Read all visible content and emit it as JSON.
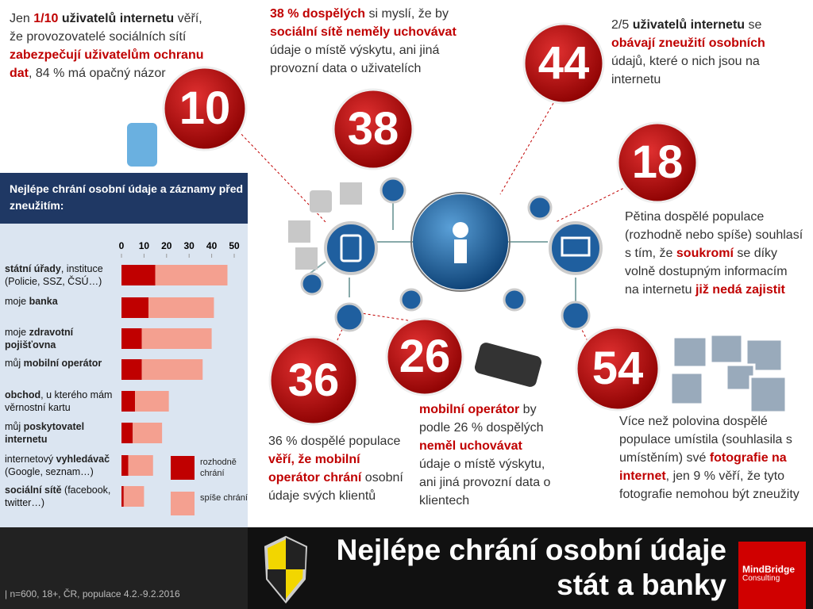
{
  "stats": [
    {
      "number": "10",
      "text": [
        {
          "text": "Jen ",
          "style": "plain"
        },
        {
          "text": "1/10",
          "style": "red"
        },
        {
          "text": " uživatelů internetu",
          "style": "bold"
        },
        {
          "text": " věří, že provozovatelé sociálních sítí ",
          "style": "plain"
        },
        {
          "text": "zabezpečují uživatelům ochranu dat",
          "style": "red"
        },
        {
          "text": ", 84 % má opačný názor",
          "style": "plain"
        }
      ]
    },
    {
      "number": "38",
      "text": [
        {
          "text": "38 % dospělých",
          "style": "red"
        },
        {
          "text": " si myslí, že by ",
          "style": "plain"
        },
        {
          "text": "sociální sítě neměly uchovávat",
          "style": "red"
        },
        {
          "text": " údaje o místě výskytu, ani jiná provozní data o uživatelích",
          "style": "plain"
        }
      ]
    },
    {
      "number": "44",
      "text": [
        {
          "text": "2/5 ",
          "style": "plain"
        },
        {
          "text": "uživatelů internetu",
          "style": "bold"
        },
        {
          "text": " se ",
          "style": "plain"
        },
        {
          "text": "obávají zneužití osobních",
          "style": "red"
        },
        {
          "text": " údajů, které o nich jsou na internetu",
          "style": "plain"
        }
      ]
    },
    {
      "number": "18",
      "text": [
        {
          "text": "Pětina dospělé populace (rozhodně nebo spíše) souhlasí s tím, že ",
          "style": "plain"
        },
        {
          "text": "soukromí",
          "style": "red"
        },
        {
          "text": " se díky volně dostupným informacím na internetu ",
          "style": "plain"
        },
        {
          "text": "již nedá zajistit",
          "style": "red"
        }
      ]
    },
    {
      "number": "36",
      "text": [
        {
          "text": "36 % dospělé populace ",
          "style": "plain"
        },
        {
          "text": "věří, že mobilní operátor chrání",
          "style": "red"
        },
        {
          "text": " osobní údaje svých klientů",
          "style": "plain"
        }
      ]
    },
    {
      "number": "26",
      "text": [
        {
          "text": "mobilní operátor",
          "style": "red"
        },
        {
          "text": " by podle 26 % dospělých ",
          "style": "plain"
        },
        {
          "text": "neměl uchovávat",
          "style": "red"
        },
        {
          "text": " údaje o místě výskytu, ani jiná provozní data o klientech",
          "style": "plain"
        }
      ]
    },
    {
      "number": "54",
      "text": [
        {
          "text": "Více než polovina dospělé populace umístila (souhlasila s umístěním) své ",
          "style": "plain"
        },
        {
          "text": "fotografie na internet",
          "style": "red"
        },
        {
          "text": ", jen 9 % věří, že tyto fotografie nemohou být zneužity",
          "style": "plain"
        }
      ]
    }
  ],
  "chart_data": {
    "type": "stacked-barh",
    "title": "Nejlépe chrání osobní údaje a záznamy před zneužitím:",
    "categories": [
      [
        {
          "text": "státní úřady",
          "style": "bold"
        },
        {
          "text": ", instituce (Policie, SSZ, ČSÚ…)",
          "style": "plain"
        }
      ],
      [
        {
          "text": "moje ",
          "style": "plain"
        },
        {
          "text": "banka",
          "style": "bold"
        }
      ],
      [
        {
          "text": "moje ",
          "style": "plain"
        },
        {
          "text": "zdravotní pojišťovna",
          "style": "bold"
        }
      ],
      [
        {
          "text": "můj ",
          "style": "plain"
        },
        {
          "text": "mobilní operátor",
          "style": "bold"
        }
      ],
      [
        {
          "text": "obchod",
          "style": "bold"
        },
        {
          "text": ", u kterého mám věrnostní kartu",
          "style": "plain"
        }
      ],
      [
        {
          "text": "můj ",
          "style": "plain"
        },
        {
          "text": "poskytovatel internetu",
          "style": "bold"
        }
      ],
      [
        {
          "text": "internetový ",
          "style": "plain"
        },
        {
          "text": "vyhledávač",
          "style": "bold"
        },
        {
          "text": " (Google, seznam…)",
          "style": "plain"
        }
      ],
      [
        {
          "text": "sociální sítě",
          "style": "bold"
        },
        {
          "text": " (facebook, twitter…)",
          "style": "plain"
        }
      ]
    ],
    "series": [
      {
        "name": "rozhodně chrání",
        "color": "#c00000",
        "values": [
          15,
          12,
          9,
          9,
          6,
          5,
          3,
          1
        ]
      },
      {
        "name": "spíše chrání",
        "color": "#f4a090",
        "values": [
          32,
          29,
          31,
          27,
          15,
          13,
          11,
          9
        ]
      }
    ],
    "xlim": [
      0,
      50
    ],
    "xticks": [
      0,
      10,
      20,
      30,
      40,
      50
    ]
  },
  "footer": {
    "note": "| n=600, 18+, ČR, populace 4.2.-9.2.2016",
    "headline_1": "Nejlépe chrání osobní údaje",
    "headline_2": "stát a banky",
    "logo_1": "MindBridge",
    "logo_2": "Consulting"
  }
}
